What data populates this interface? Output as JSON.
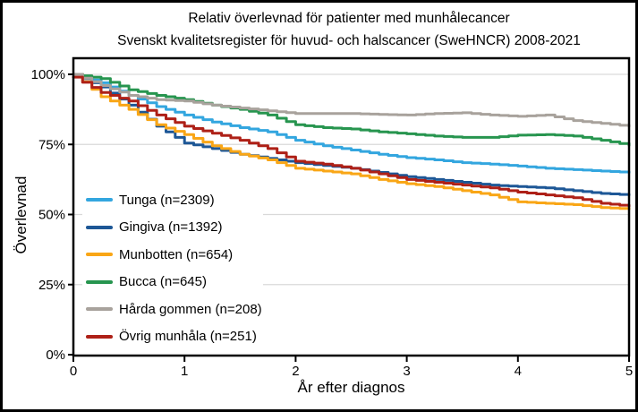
{
  "chart_data": {
    "type": "line",
    "title": "Relativ överlevnad för patienter med munhålecancer",
    "subtitle": "Svenskt kvalitetsregister för huvud- och halscancer (SweHNCR) 2008-2021",
    "xlabel": "År efter diagnos",
    "ylabel": "Överlevnad",
    "xlim": [
      0,
      5
    ],
    "ylim": [
      0,
      100
    ],
    "x_ticks": [
      0,
      1,
      2,
      3,
      4,
      5
    ],
    "y_ticks": [
      0,
      25,
      50,
      75,
      100
    ],
    "y_tick_suffix": "%",
    "grid": "horizontal",
    "grid_color": "#D9D9D9",
    "axis_color": "#000000",
    "legend_position": "inside-left",
    "curve_style": "survival-steps",
    "x": [
      0,
      0.25,
      0.5,
      0.75,
      1,
      1.25,
      1.5,
      1.75,
      2,
      2.25,
      2.5,
      2.75,
      3,
      3.25,
      3.5,
      3.75,
      4,
      4.25,
      4.5,
      4.75,
      5
    ],
    "series": [
      {
        "name": "Tunga (n=2309)",
        "color": "#33A6DF",
        "values": [
          100,
          97,
          92.5,
          88.5,
          85.5,
          83,
          81,
          79.5,
          76.5,
          74.5,
          73,
          71.5,
          70.3,
          69.5,
          68.5,
          68,
          67.3,
          66.5,
          66,
          65.5,
          65
        ]
      },
      {
        "name": "Gingiva (n=1392)",
        "color": "#1D5796",
        "values": [
          100,
          95.5,
          89,
          81.5,
          75.5,
          73.5,
          71.5,
          70,
          68.5,
          67.5,
          66.5,
          65,
          63.5,
          62.5,
          61.5,
          60.5,
          60,
          59.5,
          58.5,
          57.5,
          57
        ]
      },
      {
        "name": "Munbotten (n=654)",
        "color": "#F9A616",
        "values": [
          100,
          92,
          87.5,
          82,
          78.5,
          74.5,
          71.5,
          69.5,
          66.5,
          65.5,
          64.5,
          62.5,
          61,
          60,
          58.5,
          57,
          54.5,
          54,
          53.5,
          52.5,
          52
        ]
      },
      {
        "name": "Bucca (n=645)",
        "color": "#27954F",
        "values": [
          100,
          98.5,
          94.5,
          92.5,
          91,
          89,
          87.5,
          85.5,
          82,
          81,
          80.5,
          79.5,
          78.8,
          78,
          77.5,
          77.5,
          78.3,
          78.5,
          78,
          76.5,
          74.7
        ]
      },
      {
        "name": "Hårda gommen (n=208)",
        "color": "#A8A29C",
        "values": [
          100,
          96,
          92.5,
          91,
          90.5,
          89,
          88,
          87,
          86,
          86,
          86,
          85.7,
          85.5,
          86,
          86.3,
          85.5,
          85,
          85.5,
          83.5,
          82.5,
          81.5
        ]
      },
      {
        "name": "Övrig munhåla (n=251)",
        "color": "#AE2017",
        "values": [
          99,
          93.5,
          90.5,
          85.5,
          81.5,
          79,
          76.5,
          73.5,
          69,
          68,
          66.5,
          64.5,
          62.5,
          61.5,
          60.5,
          59.5,
          58,
          57,
          56,
          54,
          53
        ]
      }
    ]
  }
}
